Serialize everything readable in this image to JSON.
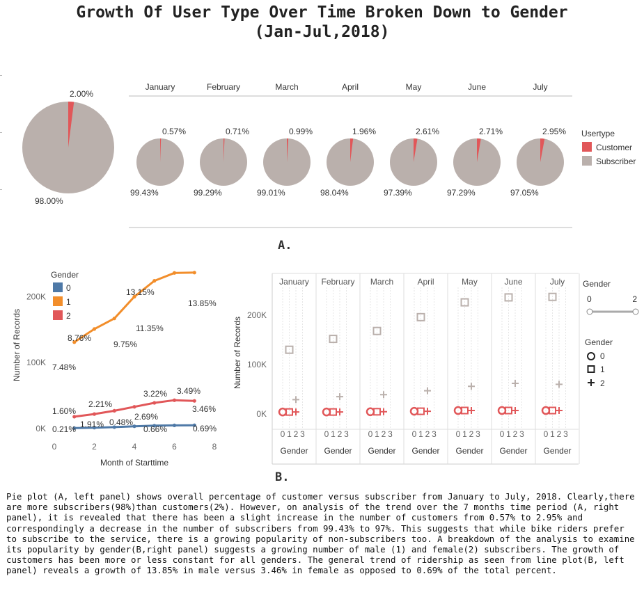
{
  "title": "Growth Of User Type Over Time Broken Down to Gender",
  "subtitle": "(Jan-Jul,2018)",
  "colors": {
    "customer": "#e15759",
    "subscriber": "#bab0ac",
    "gender0": "#4e79a7",
    "gender1": "#f28e2b",
    "gender2": "#e15759"
  },
  "panel_labels": {
    "a": "A.",
    "b": "B."
  },
  "legend_usertype": {
    "title": "Usertype",
    "items": [
      "Customer",
      "Subscriber"
    ]
  },
  "legend_gender_color": {
    "title": "Gender",
    "items": [
      "0",
      "1",
      "2"
    ]
  },
  "legend_gender_size": {
    "title": "Gender",
    "min": "0",
    "max": "2"
  },
  "legend_gender_shape": {
    "title": "Gender",
    "items": [
      "0",
      "1",
      "2"
    ]
  },
  "caption": "Pie plot (A, left panel) shows overall percentage of customer versus subscriber from January to July, 2018. Clearly,there are more subscribers(98%)than customers(2%). However, on analysis of the trend over the 7 months time period (A, right panel), it is revealed that there has been a slight increase in the  number of customers from 0.57% to 2.95% and correspondingly a decrease in the number of subscribers from 99.43% to 97%. This suggests that while bike riders prefer to subscribe to the service, there is a growing popularity of non-subscribers too. A breakdown of the analysis to examine its popularity by gender(B,right panel) suggests a growing number of male (1) and female(2) subscribers. The growth of customers has been more or less constant for all genders. The general trend of ridership as seen from line plot(B, left panel) reveals a growth of 13.85% in male versus 3.46% in female as opposed to 0.69% of the total percent.",
  "chart_data": [
    {
      "type": "pie",
      "id": "overall",
      "labels": [
        "Customer",
        "Subscriber"
      ],
      "values": [
        2.0,
        98.0
      ],
      "value_labels": [
        "2.00%",
        "98.00%"
      ]
    },
    {
      "type": "pie",
      "id": "monthly",
      "months": [
        "January",
        "February",
        "March",
        "April",
        "May",
        "June",
        "July"
      ],
      "customer": [
        0.57,
        0.71,
        0.99,
        1.96,
        2.61,
        2.71,
        2.95
      ],
      "subscriber": [
        99.43,
        99.29,
        99.01,
        98.04,
        97.39,
        97.29,
        97.05
      ],
      "customer_labels": [
        "0.57%",
        "0.71%",
        "0.99%",
        "1.96%",
        "2.61%",
        "2.71%",
        "2.95%"
      ],
      "subscriber_labels": [
        "99.43%",
        "99.29%",
        "99.01%",
        "98.04%",
        "97.39%",
        "97.29%",
        "97.05%"
      ]
    },
    {
      "type": "line",
      "id": "gender_lines",
      "xlabel": "Month of Starttime",
      "ylabel": "Number of Records",
      "xlim": [
        0,
        8
      ],
      "xticks": [
        "0",
        "2",
        "4",
        "6",
        "8"
      ],
      "ylim": [
        0,
        250000
      ],
      "yticks": [
        {
          "value": 0,
          "label": "0K"
        },
        {
          "value": 100000,
          "label": "100K"
        },
        {
          "value": 200000,
          "label": "200K"
        }
      ],
      "x": [
        1,
        2,
        3,
        4,
        5,
        6,
        7
      ],
      "series": [
        {
          "name": "0",
          "values": [
            700,
            1400,
            2200,
            3500,
            4400,
            4900,
            5100
          ]
        },
        {
          "name": "1",
          "values": [
            131000,
            151000,
            167000,
            200000,
            224000,
            236000,
            236500
          ]
        },
        {
          "name": "2",
          "values": [
            18000,
            22000,
            27000,
            33000,
            39000,
            43000,
            42000
          ]
        }
      ],
      "annotations": [
        {
          "text": "13.15%",
          "x": 5,
          "y": 236000
        },
        {
          "text": "13.85%",
          "x": 7,
          "y": 236500
        },
        {
          "text": "8.76%",
          "x": 2,
          "y": 151000
        },
        {
          "text": "11.35%",
          "x": 4,
          "y": 200000
        },
        {
          "text": "9.75%",
          "x": 3,
          "y": 167000
        },
        {
          "text": "7.48%",
          "x": 1,
          "y": 131000
        },
        {
          "text": "3.22%",
          "x": 5,
          "y": 39000
        },
        {
          "text": "3.49%",
          "x": 6,
          "y": 43000
        },
        {
          "text": "1.60%",
          "x": 1,
          "y": 18000
        },
        {
          "text": "2.21%",
          "x": 2,
          "y": 22000
        },
        {
          "text": "3.46%",
          "x": 7,
          "y": 42000
        },
        {
          "text": "2.69%",
          "x": 4,
          "y": 33000
        },
        {
          "text": "0.21%",
          "x": 1,
          "y": 700
        },
        {
          "text": "1.91%",
          "x": 2,
          "y": 1400
        },
        {
          "text": "0.48%",
          "x": 3,
          "y": 2200
        },
        {
          "text": "0.66%",
          "x": 5,
          "y": 4400
        },
        {
          "text": "0.69%",
          "x": 7,
          "y": 5100
        }
      ]
    },
    {
      "type": "scatter",
      "id": "gender_by_month",
      "months": [
        "January",
        "February",
        "March",
        "April",
        "May",
        "June",
        "July"
      ],
      "xlabel": "Gender",
      "xticks": [
        "0",
        "1",
        "2",
        "3"
      ],
      "ylabel": "Number of Records",
      "ylim": [
        0,
        265000
      ],
      "yticks": [
        {
          "value": 0,
          "label": "0K"
        },
        {
          "value": 100000,
          "label": "100K"
        },
        {
          "value": 200000,
          "label": "200K"
        }
      ],
      "series": [
        {
          "name": "0",
          "values": [
            4000,
            4000,
            4500,
            5500,
            7000,
            7000,
            7000
          ]
        },
        {
          "name": "1",
          "values": [
            130000,
            152000,
            168000,
            196000,
            226000,
            236000,
            237000
          ]
        },
        {
          "name": "2",
          "values": [
            29000,
            35000,
            39000,
            47000,
            56000,
            62000,
            60000
          ]
        }
      ]
    }
  ]
}
